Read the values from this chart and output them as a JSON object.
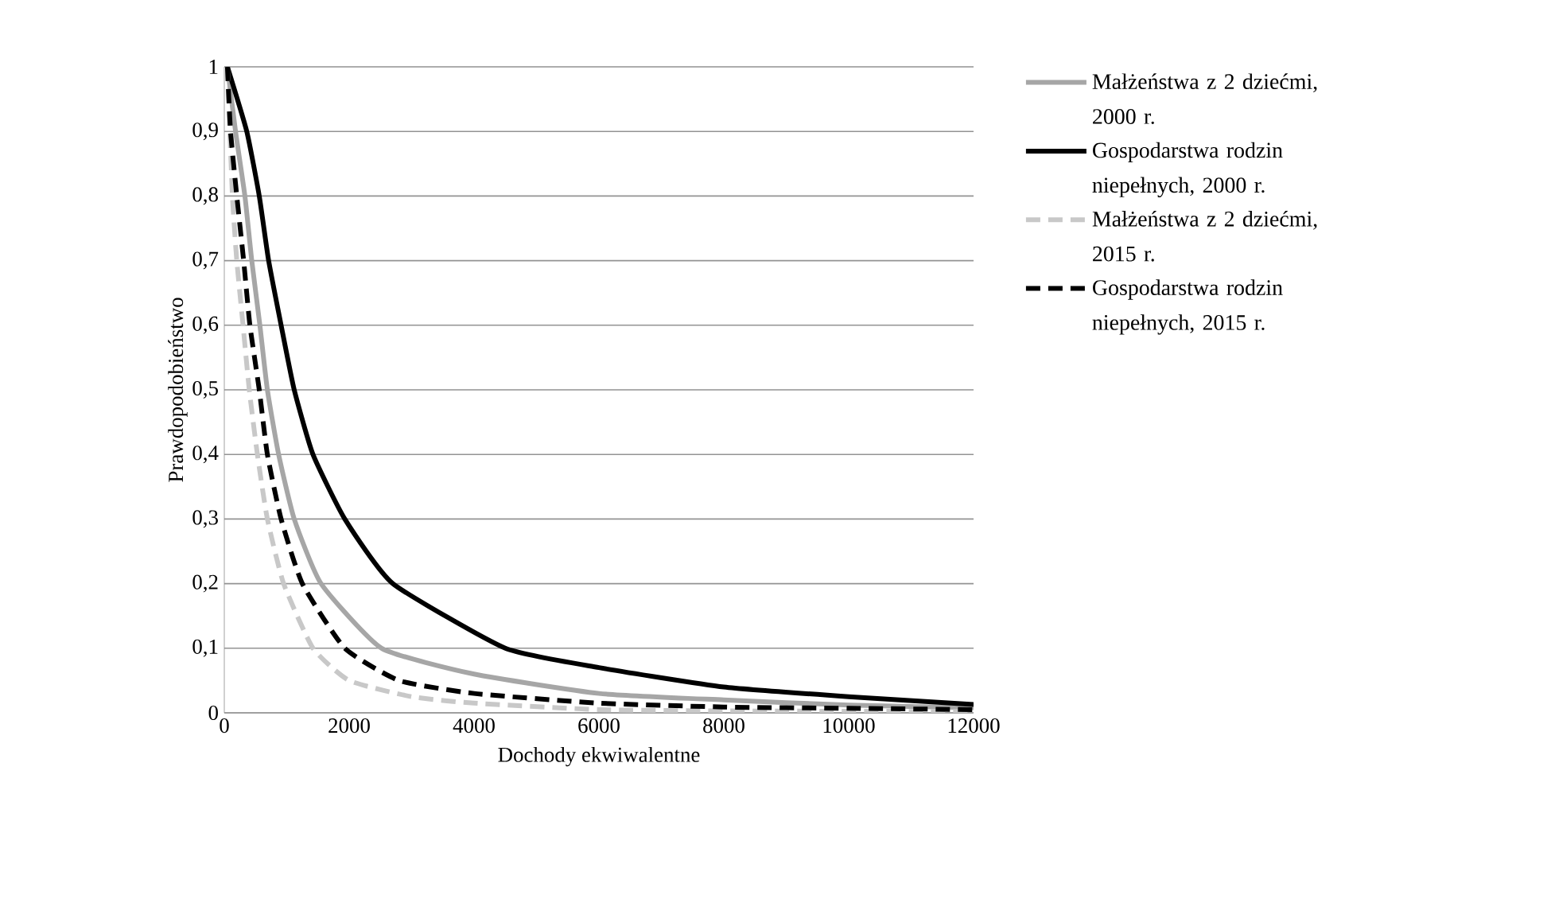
{
  "chart_data": {
    "type": "line",
    "xlabel": "Dochody ekwiwalentne",
    "ylabel": "Prawdopodobieństwo",
    "xlim": [
      0,
      12000
    ],
    "xticks": [
      0,
      2000,
      4000,
      6000,
      8000,
      10000,
      12000
    ],
    "ylim": [
      0,
      1
    ],
    "yticks": [
      0,
      {
        "value": 0.1,
        "label": "0,1"
      },
      {
        "value": 0.2,
        "label": "0,2"
      },
      {
        "value": 0.3,
        "label": "0,3"
      },
      {
        "value": 0.4,
        "label": "0,4"
      },
      {
        "value": 0.5,
        "label": "0,5"
      },
      {
        "value": 0.6,
        "label": "0,6"
      },
      {
        "value": 0.7,
        "label": "0,7"
      },
      {
        "value": 0.8,
        "label": "0,8"
      },
      {
        "value": 0.9,
        "label": "0,9"
      },
      1
    ],
    "grid": "y",
    "legend": "right",
    "marker": "none",
    "series": [
      {
        "name": "Małżeństwa z 2 dziećmi, 2000 r.",
        "color": "#a6a6a6",
        "line_style": "solid",
        "x": [
          50,
          180,
          330,
          440,
          570,
          690,
          870,
          1120,
          1550,
          2520,
          4000,
          6000,
          8000,
          10000,
          12000
        ],
        "values": [
          1,
          0.9,
          0.8,
          0.7,
          0.6,
          0.5,
          0.4,
          0.3,
          0.2,
          0.1,
          0.06,
          0.03,
          0.02,
          0.012,
          0.008
        ]
      },
      {
        "name": "Gospodarstwa rodzin niepełnych, 2000 r.",
        "color": "#000000",
        "line_style": "solid",
        "x": [
          50,
          360,
          560,
          710,
          910,
          1120,
          1420,
          1930,
          2700,
          4500,
          6000,
          8000,
          10000,
          12000
        ],
        "values": [
          1,
          0.9,
          0.8,
          0.7,
          0.6,
          0.5,
          0.4,
          0.3,
          0.2,
          0.1,
          0.07,
          0.04,
          0.025,
          0.013
        ]
      },
      {
        "name": "Małżeństwa z 2 dziećmi, 2015 r.",
        "color": "#c8c8c8",
        "line_style": "dashed",
        "x": [
          50,
          130,
          200,
          300,
          400,
          530,
          690,
          950,
          1420,
          2000,
          3000,
          4000,
          6000,
          8000,
          12000
        ],
        "values": [
          1,
          0.8,
          0.7,
          0.6,
          0.5,
          0.4,
          0.3,
          0.2,
          0.1,
          0.05,
          0.025,
          0.015,
          0.005,
          0.003,
          0.002
        ]
      },
      {
        "name": "Gospodarstwa rodzin niepełnych, 2015 r.",
        "color": "#000000",
        "line_style": "dashed",
        "x": [
          50,
          100,
          200,
          310,
          410,
          560,
          690,
          910,
          1250,
          1930,
          2800,
          4000,
          6000,
          8000,
          10000,
          12000
        ],
        "values": [
          1,
          0.9,
          0.8,
          0.7,
          0.6,
          0.5,
          0.4,
          0.3,
          0.2,
          0.1,
          0.05,
          0.03,
          0.015,
          0.009,
          0.007,
          0.005
        ]
      }
    ]
  }
}
